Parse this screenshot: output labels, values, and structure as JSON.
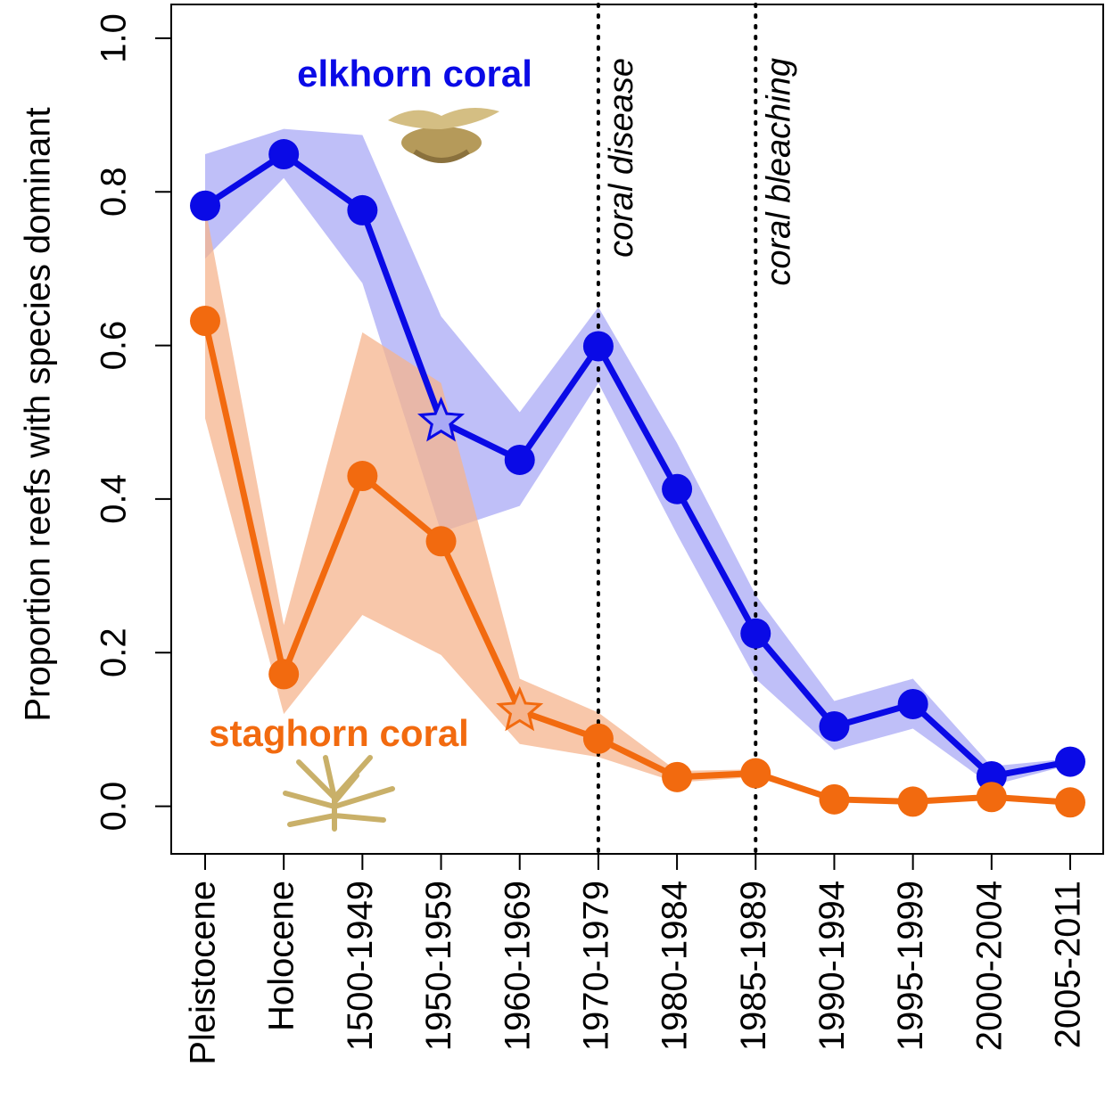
{
  "chart_data": {
    "type": "line",
    "y_label": "Proportion reefs with species dominant",
    "categories": [
      "Pleistocene",
      "Holocene",
      "1500-1949",
      "1950-1959",
      "1960-1969",
      "1970-1979",
      "1980-1984",
      "1985-1989",
      "1990-1994",
      "1995-1999",
      "2000-2004",
      "2005-2011"
    ],
    "ylim": [
      -0.062,
      1.044
    ],
    "yticks": [
      {
        "value": 0,
        "label": "0.0"
      },
      0.2,
      0.4,
      0.6,
      0.8,
      {
        "value": 1,
        "label": "1.0"
      }
    ],
    "series": [
      {
        "name": "elkhorn coral",
        "color": "#0a0ae6",
        "band_color": "#a9a9f5",
        "values": [
          0.782,
          0.849,
          0.776,
          0.501,
          0.451,
          0.599,
          0.413,
          0.225,
          0.104,
          0.133,
          0.039,
          0.058
        ],
        "upper": [
          0.849,
          0.882,
          0.874,
          0.638,
          0.513,
          0.65,
          0.473,
          0.275,
          0.137,
          0.166,
          0.052,
          0.062
        ],
        "lower": [
          0.713,
          0.818,
          0.681,
          0.357,
          0.391,
          0.551,
          0.354,
          0.166,
          0.073,
          0.101,
          0.027,
          0.054
        ],
        "markers": [
          "circle",
          "circle",
          "circle",
          "star",
          "circle",
          "circle",
          "circle",
          "circle",
          "circle",
          "circle",
          "circle",
          "circle"
        ]
      },
      {
        "name": "staghorn coral",
        "color": "#f26a0f",
        "band_color": "#f5b48e",
        "values": [
          0.632,
          0.172,
          0.43,
          0.345,
          0.124,
          0.088,
          0.038,
          0.043,
          0.009,
          0.006,
          0.012,
          0.005
        ],
        "upper": [
          0.781,
          0.236,
          0.617,
          0.551,
          0.166,
          0.122,
          0.046,
          0.048,
          0.012,
          0.009,
          0.015,
          0.007
        ],
        "lower": [
          0.505,
          0.12,
          0.249,
          0.197,
          0.081,
          0.064,
          0.031,
          0.038,
          0.006,
          0.004,
          0.009,
          0.003
        ],
        "markers": [
          "circle",
          "circle",
          "circle",
          "circle",
          "star",
          "circle",
          "circle",
          "circle",
          "circle",
          "circle",
          "circle",
          "circle"
        ]
      }
    ],
    "events": [
      {
        "category": "1970-1979",
        "label": "coral disease"
      },
      {
        "category": "1985-1989",
        "label": "coral bleaching"
      }
    ]
  }
}
